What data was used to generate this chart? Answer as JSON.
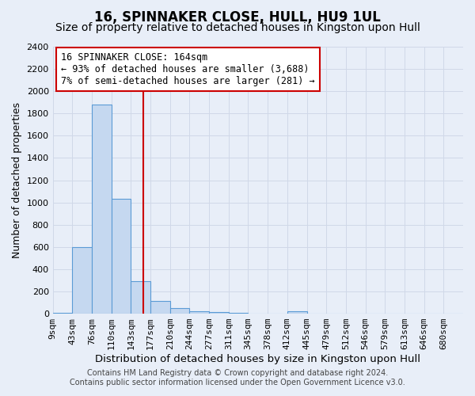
{
  "title": "16, SPINNAKER CLOSE, HULL, HU9 1UL",
  "subtitle": "Size of property relative to detached houses in Kingston upon Hull",
  "xlabel": "Distribution of detached houses by size in Kingston upon Hull",
  "ylabel": "Number of detached properties",
  "bin_labels": [
    "9sqm",
    "43sqm",
    "76sqm",
    "110sqm",
    "143sqm",
    "177sqm",
    "210sqm",
    "244sqm",
    "277sqm",
    "311sqm",
    "345sqm",
    "378sqm",
    "412sqm",
    "445sqm",
    "479sqm",
    "512sqm",
    "546sqm",
    "579sqm",
    "613sqm",
    "646sqm",
    "680sqm"
  ],
  "bar_heights": [
    5,
    600,
    1880,
    1030,
    290,
    115,
    50,
    25,
    18,
    5,
    3,
    2,
    20,
    1,
    1,
    0,
    0,
    0,
    0,
    0,
    0
  ],
  "bar_color": "#c5d8f0",
  "bar_edgecolor": "#5b9bd5",
  "property_size_idx": 4.7,
  "vline_color": "#cc0000",
  "annotation_line1": "16 SPINNAKER CLOSE: 164sqm",
  "annotation_line2": "← 93% of detached houses are smaller (3,688)",
  "annotation_line3": "7% of semi-detached houses are larger (281) →",
  "annotation_box_facecolor": "#ffffff",
  "annotation_box_edgecolor": "#cc0000",
  "ylim_max": 2400,
  "ytick_step": 200,
  "grid_color": "#d0d8e8",
  "background_color": "#e8eef8",
  "footer_line1": "Contains HM Land Registry data © Crown copyright and database right 2024.",
  "footer_line2": "Contains public sector information licensed under the Open Government Licence v3.0.",
  "title_fontsize": 12,
  "subtitle_fontsize": 10,
  "xlabel_fontsize": 9.5,
  "ylabel_fontsize": 9,
  "tick_fontsize": 8,
  "annotation_fontsize": 8.5,
  "footer_fontsize": 7
}
